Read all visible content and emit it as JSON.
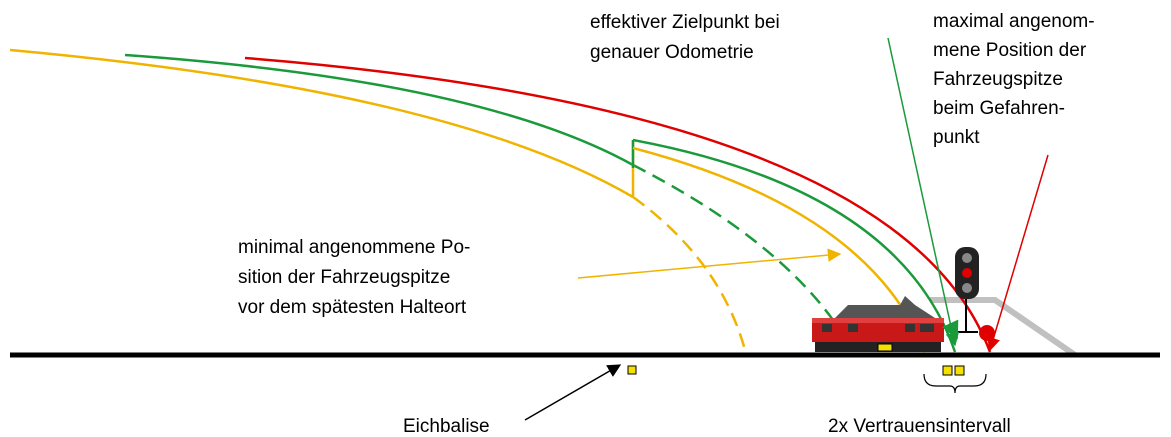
{
  "labels": {
    "target": [
      "effektiver Zielpunkt bei",
      "genauer Odometrie"
    ],
    "max_position": [
      "maximal angenom-",
      "mene Position der",
      "Fahrzeugspitze",
      "beim Gefahren-",
      "punkt"
    ],
    "min_position": [
      "minimal angenommene Po-",
      "sition der Fahrzeugspitze",
      "vor dem spätesten Halteort"
    ],
    "balise": "Eichbalise",
    "interval": "2x Vertrauensintervall"
  }
}
